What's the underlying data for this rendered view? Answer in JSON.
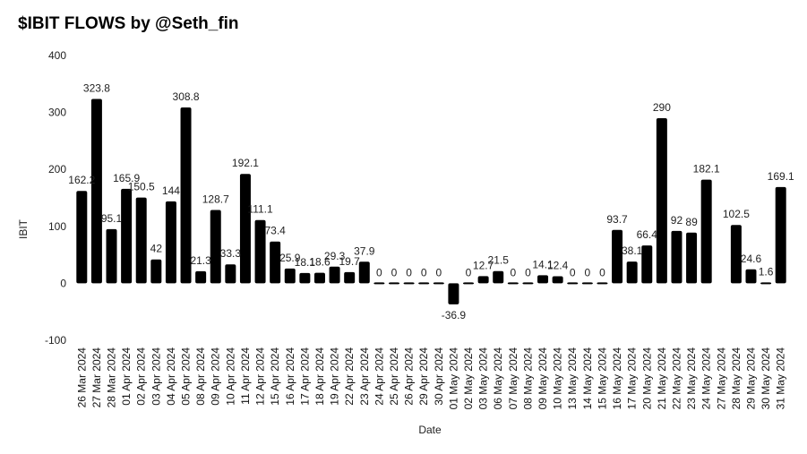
{
  "chart_data": {
    "type": "bar",
    "title": "$IBIT FLOWS by @Seth_fin",
    "xlabel": "Date",
    "ylabel": "IBIT",
    "ylim": [
      -100,
      400
    ],
    "yticks": [
      -100,
      0,
      100,
      200,
      300,
      400
    ],
    "grid": false,
    "bar_color": "#000000",
    "categories": [
      "26 Mar 2024",
      "27 Mar 2024",
      "28 Mar 2024",
      "01 Apr 2024",
      "02 Apr 2024",
      "03 Apr 2024",
      "04 Apr 2024",
      "05 Apr 2024",
      "08 Apr 2024",
      "09 Apr 2024",
      "10 Apr 2024",
      "11 Apr 2024",
      "12 Apr 2024",
      "15 Apr 2024",
      "16 Apr 2024",
      "17 Apr 2024",
      "18 Apr 2024",
      "19 Apr 2024",
      "22 Apr 2024",
      "23 Apr 2024",
      "24 Apr 2024",
      "25 Apr 2024",
      "26 Apr 2024",
      "29 Apr 2024",
      "30 Apr 2024",
      "01 May 2024",
      "02 May 2024",
      "03 May 2024",
      "06 May 2024",
      "07 May 2024",
      "08 May 2024",
      "09 May 2024",
      "10 May 2024",
      "13 May 2024",
      "14 May 2024",
      "15 May 2024",
      "16 May 2024",
      "17 May 2024",
      "20 May 2024",
      "21 May 2024",
      "22 May 2024",
      "23 May 2024",
      "24 May 2024",
      "27 May 2024",
      "28 May 2024",
      "29 May 2024",
      "30 May 2024",
      "31 May 2024"
    ],
    "values": [
      162.2,
      323.8,
      95.1,
      165.9,
      150.5,
      42,
      144,
      308.8,
      21.3,
      128.7,
      33.3,
      192.1,
      111.1,
      73.4,
      25.9,
      18.1,
      18.6,
      29.3,
      19.7,
      37.9,
      0,
      0,
      0,
      0,
      0,
      -36.9,
      0,
      12.7,
      21.5,
      0,
      0,
      14.1,
      12.4,
      0,
      0,
      0,
      93.7,
      38.1,
      66.4,
      290,
      92,
      89,
      182.1,
      null,
      102.5,
      24.6,
      1.6,
      169.1
    ],
    "labels": [
      "162.2",
      "323.8",
      "95.1",
      "165.9",
      "150.5",
      "42",
      "144",
      "308.8",
      "21.3",
      "128.7",
      "33.3",
      "192.1",
      "111.1",
      "73.4",
      "25.9",
      "18.1",
      "18.6",
      "29.3",
      "19.7",
      "37.9",
      "0",
      "0",
      "0",
      "0",
      "0",
      "-36.9",
      "0",
      "12.7",
      "21.5",
      "0",
      "0",
      "14.1",
      "12.4",
      "0",
      "0",
      "0",
      "93.7",
      "38.1",
      "66.4",
      "290",
      "92",
      "89",
      "182.1",
      "",
      "102.5",
      "24.6",
      "1.6",
      "169.1"
    ]
  }
}
